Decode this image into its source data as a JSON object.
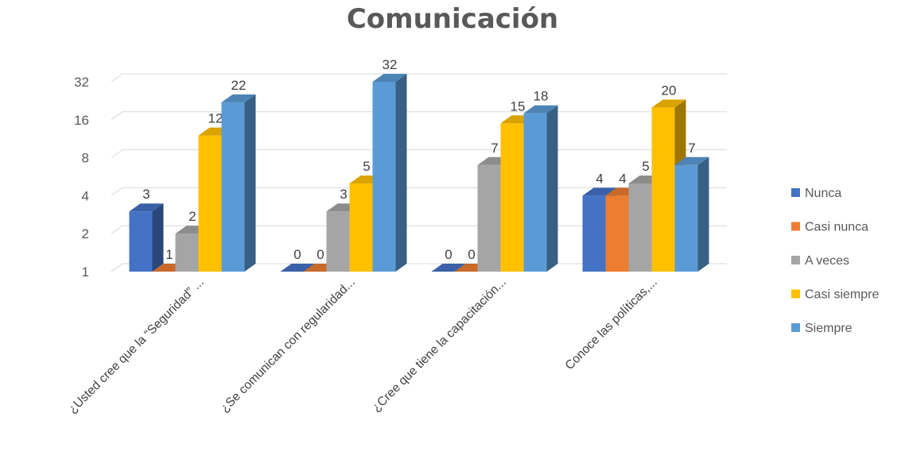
{
  "chart_data": {
    "type": "bar",
    "title": "Comunicación",
    "xlabel": "",
    "ylabel": "",
    "scale": "log2",
    "ylim": [
      1,
      32
    ],
    "yticks": [
      1,
      2,
      4,
      8,
      16,
      32
    ],
    "grid": true,
    "legend_position": "right",
    "categories": [
      "¿Usted cree que la “Seguridad” ...",
      "¿Se comunican con regularidad...",
      "¿Cree que tiene la capacitación...",
      "Conoce las políticas,..."
    ],
    "series": [
      {
        "name": "Nunca",
        "color": "#4472c4",
        "values": [
          3,
          0,
          0,
          4
        ]
      },
      {
        "name": "Casi nunca",
        "color": "#ed7d31",
        "values": [
          1,
          0,
          0,
          4
        ]
      },
      {
        "name": "A veces",
        "color": "#a5a5a5",
        "values": [
          2,
          3,
          7,
          5
        ]
      },
      {
        "name": "Casi siempre",
        "color": "#ffc000",
        "values": [
          12,
          5,
          15,
          20
        ]
      },
      {
        "name": "Siempre",
        "color": "#5b9bd5",
        "values": [
          22,
          32,
          18,
          7
        ]
      }
    ]
  }
}
